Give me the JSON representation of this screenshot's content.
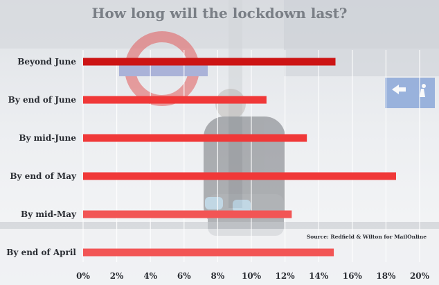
{
  "chart_data": {
    "type": "bar",
    "orientation": "horizontal",
    "title": "How long will the lockdown last?",
    "categories": [
      "Beyond June",
      "By  end of June",
      "By mid-June",
      "By end of May",
      "By mid-May",
      "By end of April"
    ],
    "values": [
      15.0,
      10.9,
      13.3,
      18.6,
      12.4,
      14.9
    ],
    "xlim": [
      0,
      20
    ],
    "x_ticks": [
      "0%",
      "2%",
      "4%",
      "6%",
      "8%",
      "10%",
      "12%",
      "14%",
      "16%",
      "18%",
      "20%"
    ],
    "grid": true,
    "source": "Source: Redfield & Wilton for MailOnline",
    "colors": {
      "bar_top": "#cc1414",
      "bar": "#f03838",
      "bar_light": "#f25555"
    }
  }
}
